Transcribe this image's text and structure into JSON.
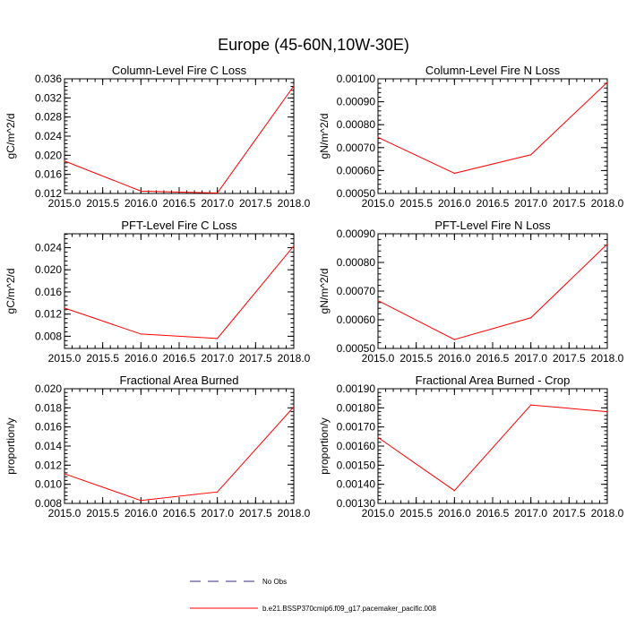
{
  "title": "Europe (45-60N,10W-30E)",
  "chart_data": [
    {
      "type": "line",
      "title": "Column-Level Fire C Loss",
      "ylabel": "gC/m^2/d",
      "xlim": [
        2015.0,
        2018.0
      ],
      "ylim": [
        0.012,
        0.036
      ],
      "xticks": [
        "2015.0",
        "2015.5",
        "2016.0",
        "2016.5",
        "2017.0",
        "2017.5",
        "2018.0"
      ],
      "yticks": [
        "0.012",
        "0.016",
        "0.020",
        "0.024",
        "0.028",
        "0.032",
        "0.036"
      ],
      "x": [
        2015.0,
        2016.0,
        2017.0,
        2018.0
      ],
      "values": [
        0.0188,
        0.0125,
        0.0121,
        0.0345
      ]
    },
    {
      "type": "line",
      "title": "Column-Level Fire N Loss",
      "ylabel": "gN/m^2/d",
      "xlim": [
        2015.0,
        2018.0
      ],
      "ylim": [
        0.0005,
        0.001
      ],
      "xticks": [
        "2015.0",
        "2015.5",
        "2016.0",
        "2016.5",
        "2017.0",
        "2017.5",
        "2018.0"
      ],
      "yticks": [
        "0.00050",
        "0.00060",
        "0.00070",
        "0.00080",
        "0.00090",
        "0.00100"
      ],
      "x": [
        2015.0,
        2016.0,
        2017.0,
        2018.0
      ],
      "values": [
        0.000745,
        0.000588,
        0.000669,
        0.000985
      ]
    },
    {
      "type": "line",
      "title": "PFT-Level Fire C Loss",
      "ylabel": "gC/m^2/d",
      "xlim": [
        2015.0,
        2018.0
      ],
      "ylim": [
        0.0058,
        0.0265
      ],
      "xticks": [
        "2015.0",
        "2015.5",
        "2016.0",
        "2016.5",
        "2017.0",
        "2017.5",
        "2018.0"
      ],
      "yticks": [
        "0.008",
        "0.012",
        "0.016",
        "0.020",
        "0.024"
      ],
      "x": [
        2015.0,
        2016.0,
        2017.0,
        2018.0
      ],
      "values": [
        0.0131,
        0.0084,
        0.0076,
        0.0243
      ]
    },
    {
      "type": "line",
      "title": "PFT-Level Fire N Loss",
      "ylabel": "gN/m^2/d",
      "xlim": [
        2015.0,
        2018.0
      ],
      "ylim": [
        0.0005,
        0.0009
      ],
      "xticks": [
        "2015.0",
        "2015.5",
        "2016.0",
        "2016.5",
        "2017.0",
        "2017.5",
        "2018.0"
      ],
      "yticks": [
        "0.00050",
        "0.00060",
        "0.00070",
        "0.00080",
        "0.00090"
      ],
      "x": [
        2015.0,
        2016.0,
        2017.0,
        2018.0
      ],
      "values": [
        0.000667,
        0.000531,
        0.000607,
        0.000864
      ]
    },
    {
      "type": "line",
      "title": "Fractional Area Burned",
      "ylabel": "proportion/y",
      "xlim": [
        2015.0,
        2018.0
      ],
      "ylim": [
        0.008,
        0.02
      ],
      "xticks": [
        "2015.0",
        "2015.5",
        "2016.0",
        "2016.5",
        "2017.0",
        "2017.5",
        "2018.0"
      ],
      "yticks": [
        "0.008",
        "0.010",
        "0.012",
        "0.014",
        "0.016",
        "0.018",
        "0.020"
      ],
      "x": [
        2015.0,
        2016.0,
        2017.0,
        2018.0
      ],
      "values": [
        0.0111,
        0.0083,
        0.0092,
        0.0181
      ]
    },
    {
      "type": "line",
      "title": "Fractional Area Burned - Crop",
      "ylabel": "proportion/y",
      "xlim": [
        2015.0,
        2018.0
      ],
      "ylim": [
        0.0013,
        0.0019
      ],
      "xticks": [
        "2015.0",
        "2015.5",
        "2016.0",
        "2016.5",
        "2017.0",
        "2017.5",
        "2018.0"
      ],
      "yticks": [
        "0.00130",
        "0.00140",
        "0.00150",
        "0.00160",
        "0.00170",
        "0.00180",
        "0.00190"
      ],
      "x": [
        2015.0,
        2016.0,
        2017.0,
        2018.0
      ],
      "values": [
        0.001645,
        0.001367,
        0.001815,
        0.00178
      ]
    }
  ],
  "legend": [
    {
      "label": "No Obs",
      "color": "#3b2f8f",
      "dash": true
    },
    {
      "label": "b.e21.BSSP370cmip6.f09_g17.pacemaker_pacific.008",
      "color": "#ff0000",
      "dash": false
    }
  ]
}
